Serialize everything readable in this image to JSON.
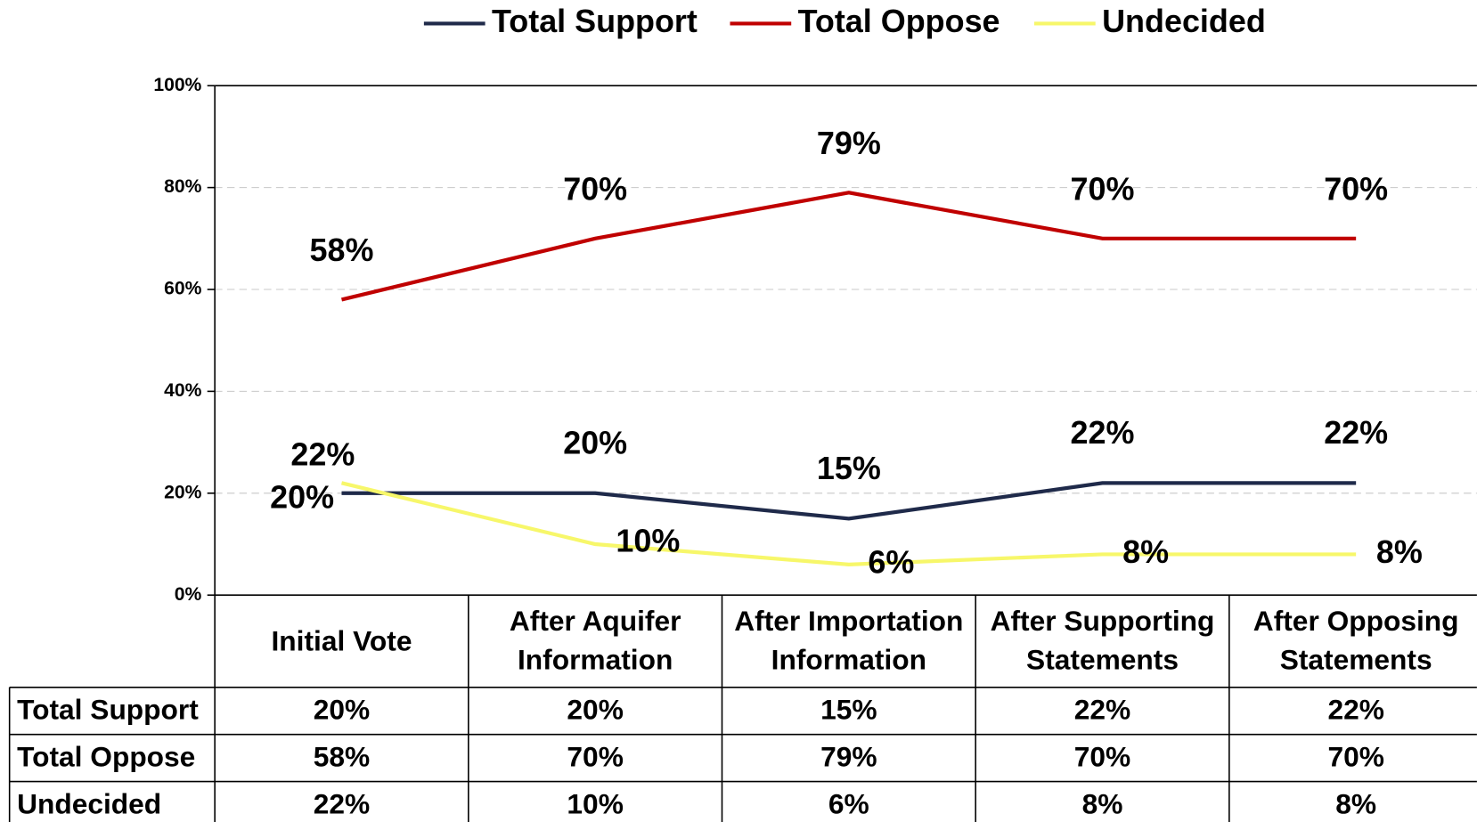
{
  "chart_data": {
    "type": "line",
    "categories": [
      "Initial Vote",
      "After Aquifer Information",
      "After Importation Information",
      "After Supporting Statements",
      "After Opposing Statements"
    ],
    "series": [
      {
        "name": "Total Support",
        "color": "#1f2a4a",
        "values": [
          20,
          20,
          15,
          22,
          22
        ],
        "value_labels": [
          "20%",
          "20%",
          "15%",
          "22%",
          "22%"
        ]
      },
      {
        "name": "Total Oppose",
        "color": "#c00000",
        "values": [
          58,
          70,
          79,
          70,
          70
        ],
        "value_labels": [
          "58%",
          "70%",
          "79%",
          "70%",
          "70%"
        ]
      },
      {
        "name": "Undecided",
        "color": "#f7f76a",
        "values": [
          22,
          10,
          6,
          8,
          8
        ],
        "value_labels": [
          "22%",
          "10%",
          "6%",
          "8%",
          "8%"
        ]
      }
    ],
    "ylim": [
      0,
      100
    ],
    "yticks": [
      {
        "value": 0,
        "label": "0%"
      },
      {
        "value": 20,
        "label": "20%"
      },
      {
        "value": 40,
        "label": "40%"
      },
      {
        "value": 60,
        "label": "60%"
      },
      {
        "value": 80,
        "label": "80%"
      },
      {
        "value": 100,
        "label": "100%"
      }
    ],
    "grid": true,
    "legend": "top"
  }
}
